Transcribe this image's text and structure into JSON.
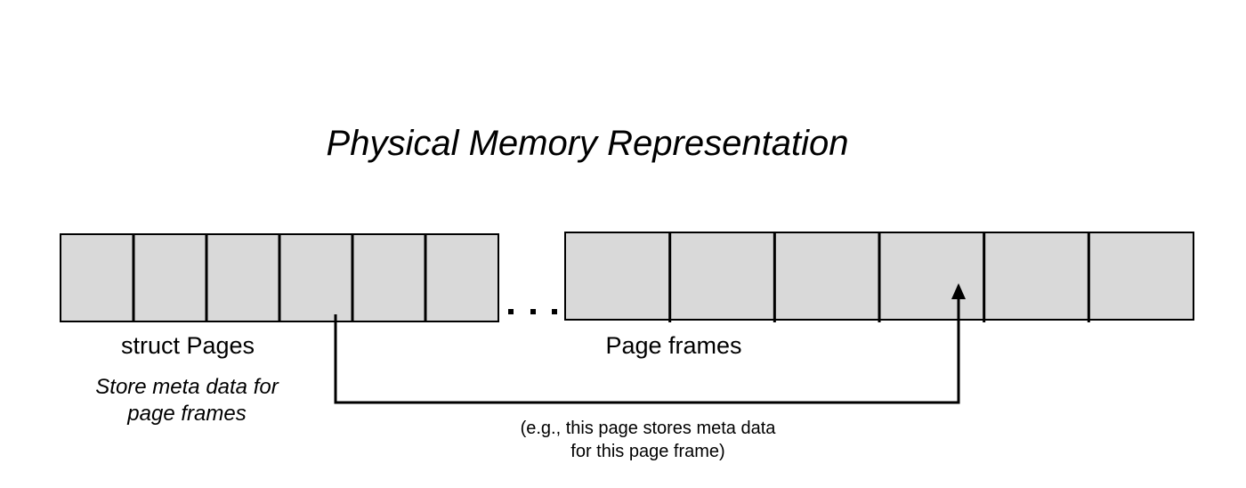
{
  "title": "Physical Memory Representation",
  "colors": {
    "cell_fill": "#d9d9d9",
    "stroke": "#000000",
    "background": "#ffffff"
  },
  "struct_pages": {
    "cell_count": 6,
    "label": "struct Pages",
    "description_lines": [
      "Store meta data for",
      "page frames"
    ]
  },
  "ellipsis": "...",
  "page_frames": {
    "cell_count": 6,
    "label": "Page frames"
  },
  "mapping": {
    "from_cell_index": 3,
    "to_cell_index": 3,
    "note_lines": [
      "(e.g., this page stores meta data",
      "for this page frame)"
    ]
  }
}
